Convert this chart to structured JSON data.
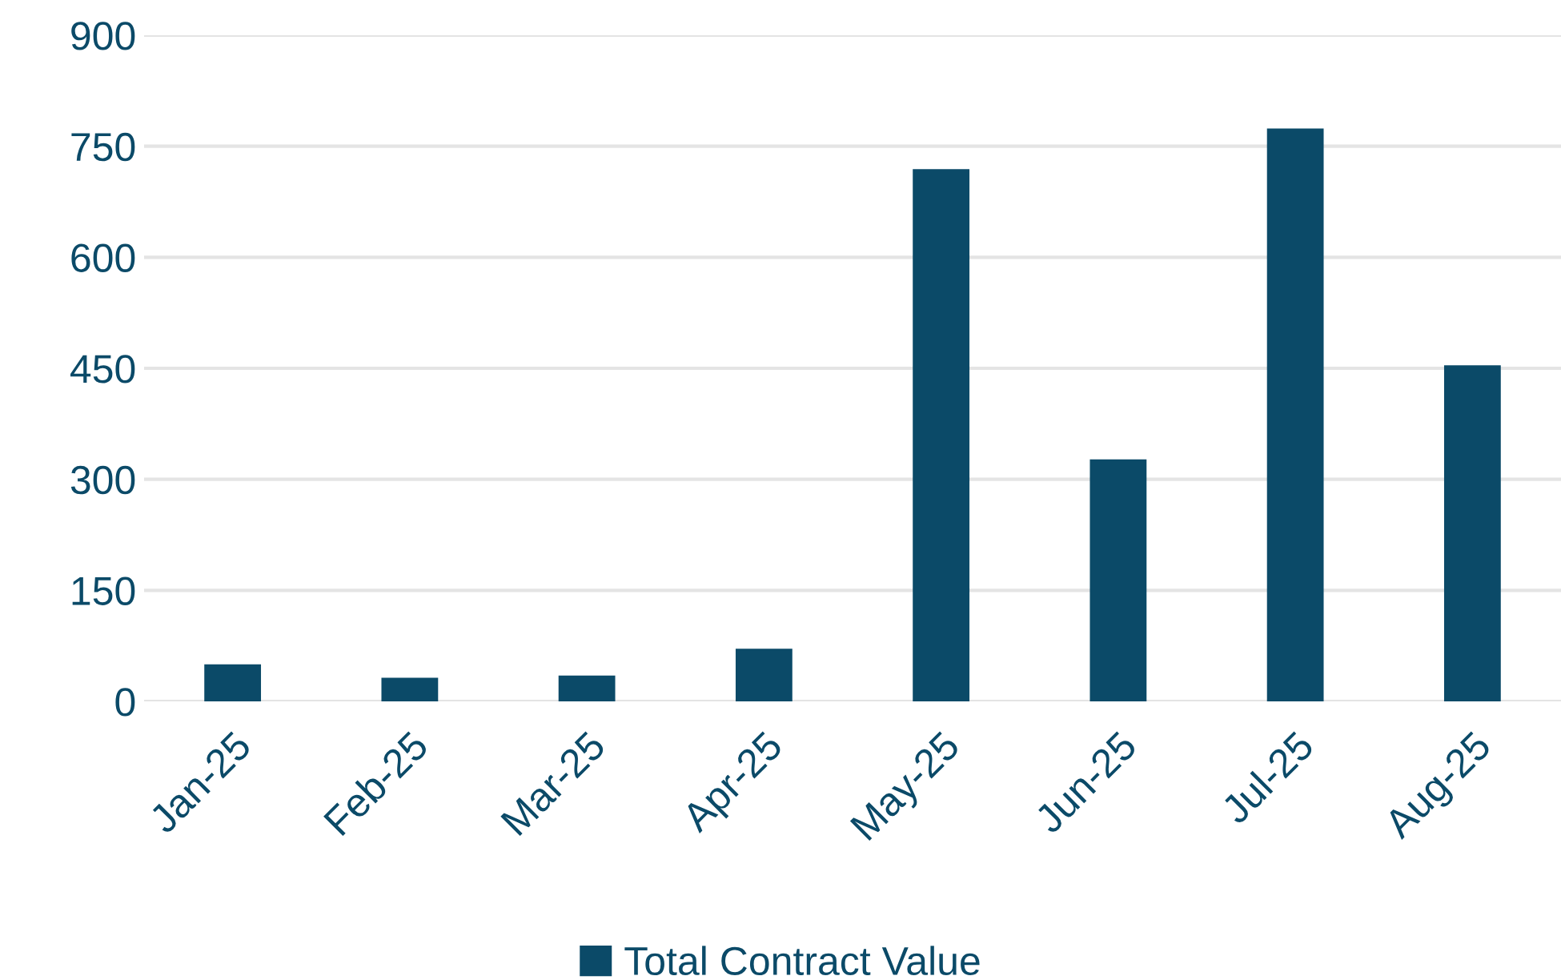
{
  "chart_data": {
    "type": "bar",
    "categories": [
      "Jan-25",
      "Feb-25",
      "Mar-25",
      "Apr-25",
      "May-25",
      "Jun-25",
      "Jul-25",
      "Aug-25"
    ],
    "series": [
      {
        "name": "Total Contract Value",
        "color": "#0b4a68",
        "values": [
          50,
          32,
          35,
          71,
          719,
          327,
          774,
          454
        ]
      }
    ],
    "ylim": [
      0,
      900
    ],
    "yticks": [
      0,
      150,
      300,
      450,
      600,
      750,
      900
    ],
    "grid": "y",
    "legend": "bottom"
  }
}
